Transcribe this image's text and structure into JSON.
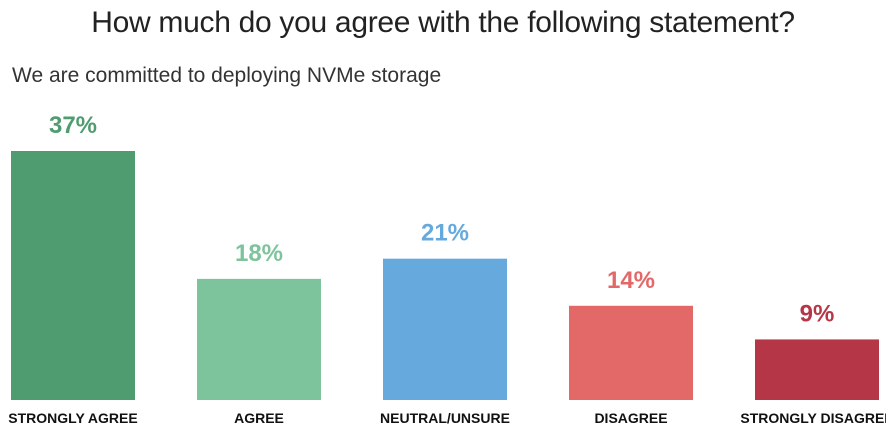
{
  "title": "How much do you agree with the following statement?",
  "subtitle": "We are committed to deploying NVMe storage",
  "chart_data": {
    "type": "bar",
    "categories": [
      "STRONGLY AGREE",
      "AGREE",
      "NEUTRAL/UNSURE",
      "DISAGREE",
      "STRONGLY DISAGREE"
    ],
    "values": [
      37,
      18,
      21,
      14,
      9
    ],
    "value_labels": [
      "37%",
      "18%",
      "21%",
      "14%",
      "9%"
    ],
    "colors": [
      "#4f9c70",
      "#7dc49c",
      "#66a9dc",
      "#e36868",
      "#b53747"
    ],
    "ylim": [
      0,
      37
    ],
    "grid": false,
    "legend": "none"
  }
}
